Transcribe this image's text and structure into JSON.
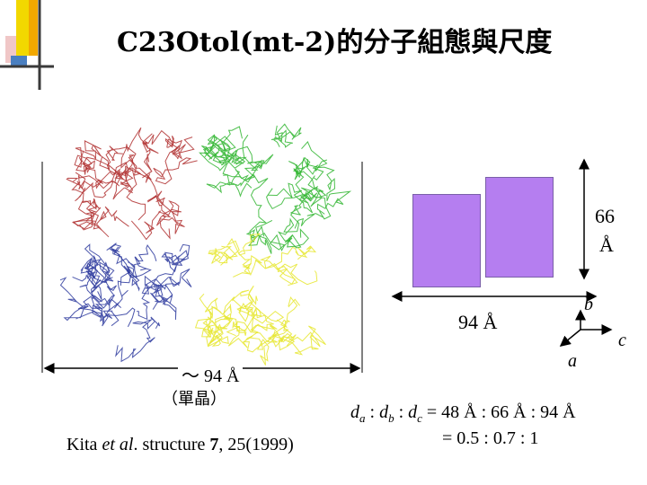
{
  "slide": {
    "title": "C23Otol(mt-2)的分子組態與尺度",
    "accent_colors": {
      "deco_yellow": "#f2d800",
      "deco_orange": "#f2a800",
      "deco_dark": "#3a3a3a",
      "deco_pink": "#f0c7c7",
      "deco_blue": "#4a7fc0",
      "box_fill": "#b57ef0",
      "box_stroke": "#7a5fa8"
    }
  },
  "protein": {
    "subunit_colors": [
      "#b03030",
      "#2fb52f",
      "#2d3a9e",
      "#e6e62e"
    ],
    "width_label": "～ 94 Å",
    "crystal_label": "（單晶）"
  },
  "boxes": {
    "height_label_1": "66",
    "height_label_2": "Å",
    "width_label": "94 Å"
  },
  "axes": {
    "b": "b",
    "c": "c",
    "a": "a"
  },
  "ratio": {
    "d": "d",
    "sub_a": "a",
    "sub_b": "b",
    "sub_c": "c",
    "sep": " : ",
    "eq_values": " = 48 Å : 66 Å : 94 Å",
    "line2": "= 0.5 : 0.7 : 1"
  },
  "citation": {
    "pre": "Kita ",
    "etal": "et al",
    "post": ". structure ",
    "vol": "7",
    "pages": ", 25(1999)"
  }
}
